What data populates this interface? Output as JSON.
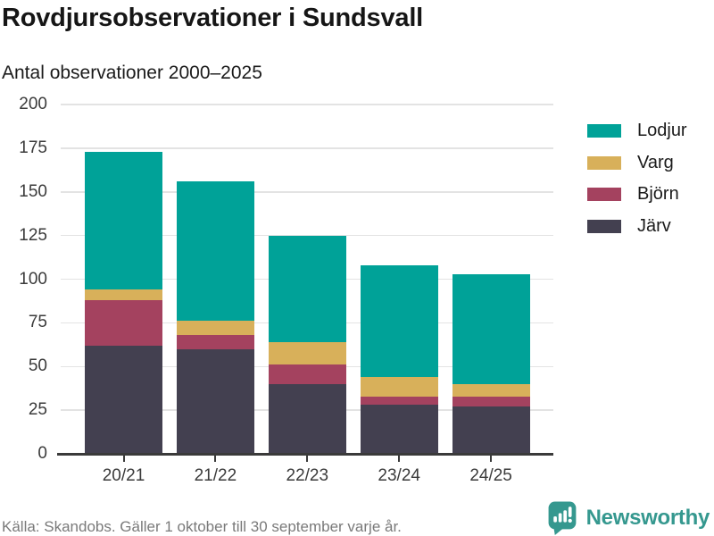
{
  "header": {
    "title": "Rovdjursobservationer i Sundsvall",
    "subtitle": "Antal observationer 2000–2025"
  },
  "chart_data": {
    "type": "bar",
    "stacked": true,
    "title": "Rovdjursobservationer i Sundsvall",
    "subtitle": "Antal observationer 2000–2025",
    "categories": [
      "20/21",
      "21/22",
      "22/23",
      "23/24",
      "24/25"
    ],
    "series": [
      {
        "name": "Järv",
        "color": "#434050",
        "values": [
          62,
          60,
          40,
          28,
          27
        ]
      },
      {
        "name": "Björn",
        "color": "#a4425f",
        "values": [
          26,
          8,
          11,
          5,
          6
        ]
      },
      {
        "name": "Varg",
        "color": "#d8b05a",
        "values": [
          6,
          8,
          13,
          11,
          7
        ]
      },
      {
        "name": "Lodjur",
        "color": "#00a298",
        "values": [
          79,
          80,
          61,
          64,
          63
        ]
      }
    ],
    "stack_totals": [
      173,
      156,
      125,
      108,
      103
    ],
    "xlabel": "",
    "ylabel": "",
    "ylim": [
      0,
      200
    ],
    "yticks": [
      0,
      25,
      50,
      75,
      100,
      125,
      150,
      175,
      200
    ],
    "grid": true,
    "legend": {
      "position": "right",
      "order": [
        "Lodjur",
        "Varg",
        "Björn",
        "Järv"
      ]
    }
  },
  "footer": {
    "source": "Källa: Skandobs. Gäller 1 oktober till 30 september varje år.",
    "brand": "Newsworthy"
  },
  "colors": {
    "teal": "#00a298",
    "gold": "#d8b05a",
    "maroon": "#a4425f",
    "dark_slate": "#434050",
    "brand_teal": "#35988f",
    "grid": "#e3e3e3",
    "axis": "#3a3a3a",
    "text_dark": "#1b1b1b",
    "text_gray": "#7a7a7a"
  }
}
